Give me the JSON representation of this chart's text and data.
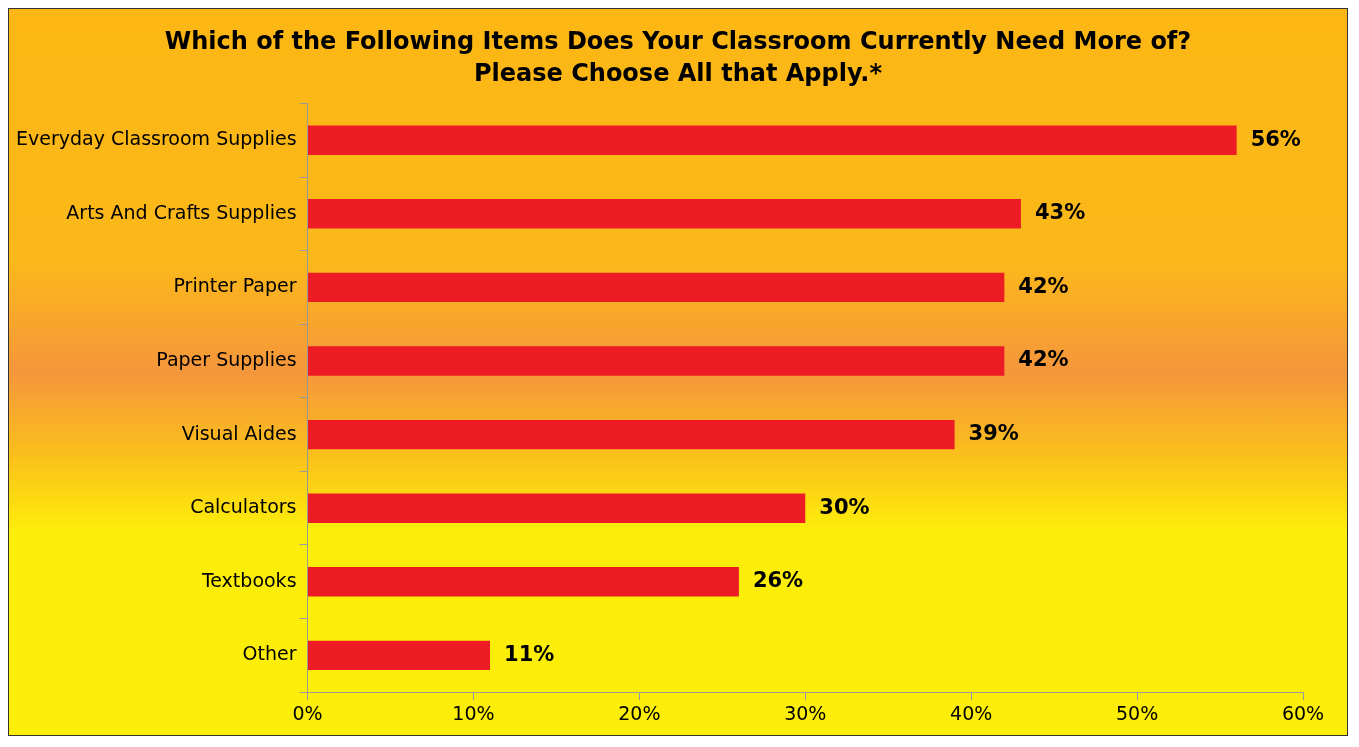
{
  "chart_data": {
    "type": "bar",
    "orientation": "horizontal",
    "title": "Which of the Following Items Does Your Classroom Currently Need More of?\nPlease Choose All that Apply.*",
    "categories": [
      "Everyday Classroom Supplies",
      "Arts And Crafts Supplies",
      "Printer Paper",
      "Paper Supplies",
      "Visual Aides",
      "Calculators",
      "Textbooks",
      "Other"
    ],
    "values": [
      56,
      43,
      42,
      42,
      39,
      30,
      26,
      11
    ],
    "value_labels": [
      "56%",
      "43%",
      "42%",
      "42%",
      "39%",
      "30%",
      "26%",
      "11%"
    ],
    "color": "#ed1c24",
    "xlim": [
      0,
      60
    ],
    "xticks": [
      {
        "value": 0,
        "label": "0%"
      },
      {
        "value": 10,
        "label": "10%"
      },
      {
        "value": 20,
        "label": "20%"
      },
      {
        "value": 30,
        "label": "30%"
      },
      {
        "value": 40,
        "label": "40%"
      },
      {
        "value": 50,
        "label": "50%"
      },
      {
        "value": 60,
        "label": "60%"
      }
    ],
    "grid": false,
    "legend": false
  }
}
